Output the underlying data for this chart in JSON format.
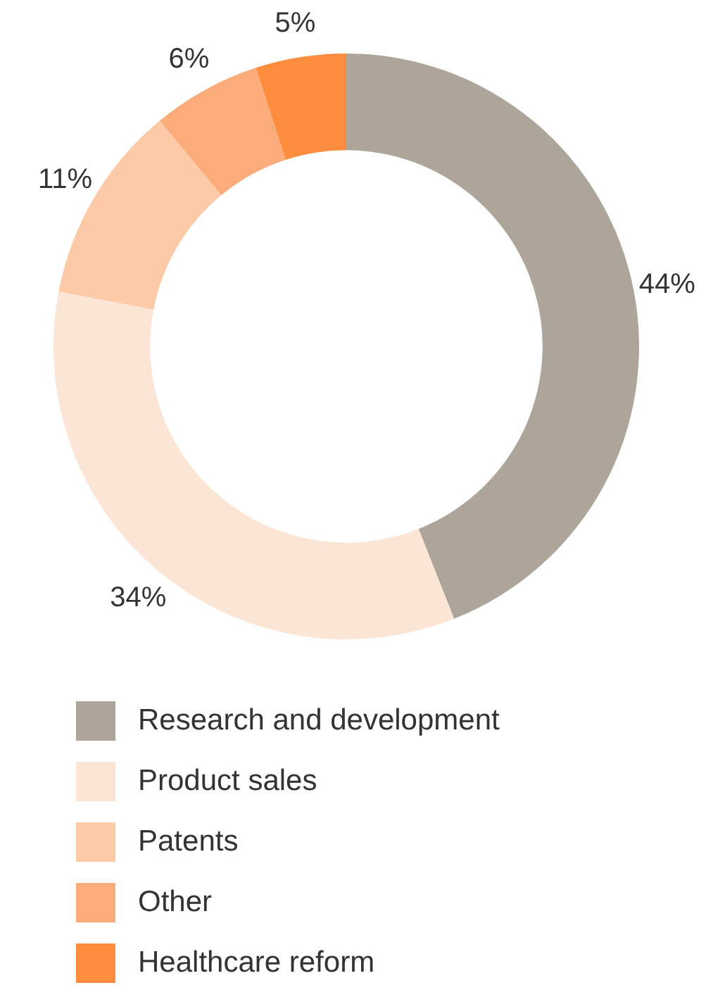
{
  "chart_data": {
    "type": "donut",
    "categories": [
      "Research and development",
      "Product sales",
      "Patents",
      "Other",
      "Healthcare reform"
    ],
    "values": [
      44,
      34,
      11,
      6,
      5
    ],
    "colors": [
      "#ada59a",
      "#fde5d6",
      "#fdcaa8",
      "#fcac7a",
      "#fd8c3f"
    ],
    "value_labels": [
      "44%",
      "34%",
      "11%",
      "6%",
      "5%"
    ],
    "legend": "bottom"
  }
}
